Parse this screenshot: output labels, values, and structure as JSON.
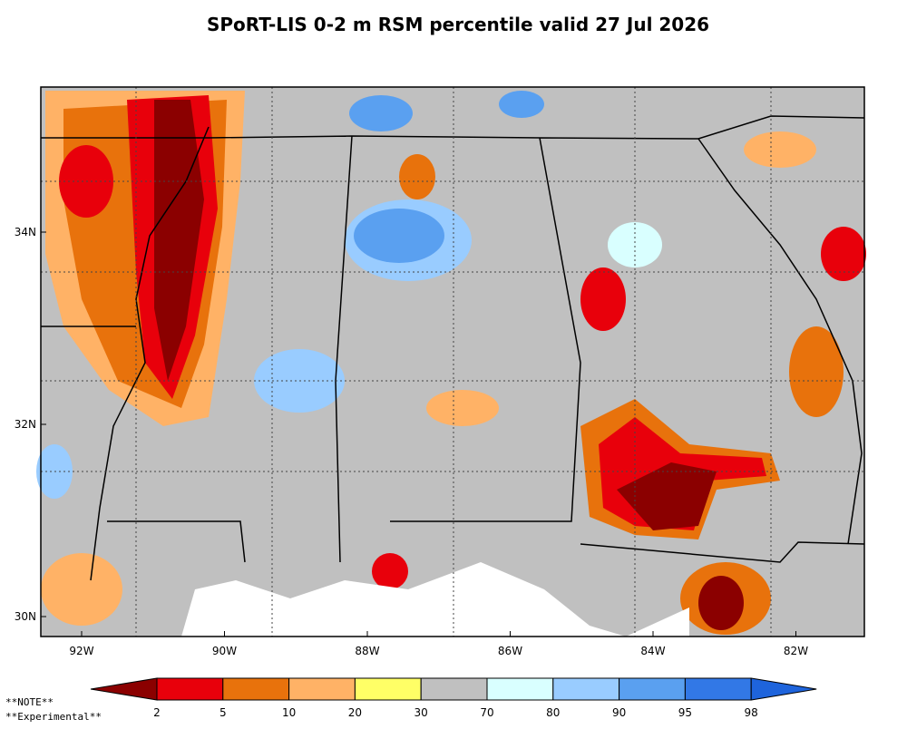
{
  "map": {
    "title": "SPoRT-LIS 0-2 m RSM percentile valid 27 Jul 2026",
    "lon_ticks": [
      {
        "value": -92,
        "label": "92W"
      },
      {
        "value": -90,
        "label": "90W"
      },
      {
        "value": -88,
        "label": "88W"
      },
      {
        "value": -86,
        "label": "86W"
      },
      {
        "value": -84,
        "label": "84W"
      },
      {
        "value": -82,
        "label": "82W"
      }
    ],
    "lat_ticks": [
      {
        "value": 34,
        "label": "34N"
      },
      {
        "value": 32,
        "label": "32N"
      },
      {
        "value": 30,
        "label": "30N"
      }
    ],
    "colorbar": {
      "bounds": [
        2,
        5,
        10,
        20,
        30,
        70,
        80,
        90,
        95,
        98
      ],
      "colors": [
        "#8b0000",
        "#e8000b",
        "#e8720c",
        "#ffb266",
        "#ffff66",
        "#c0c0c0",
        "#d9ffff",
        "#99ccff",
        "#5aa0f0",
        "#3278e6",
        "#1e64dc"
      ]
    },
    "notes": [
      "**NOTE**",
      "**Experimental**"
    ]
  }
}
